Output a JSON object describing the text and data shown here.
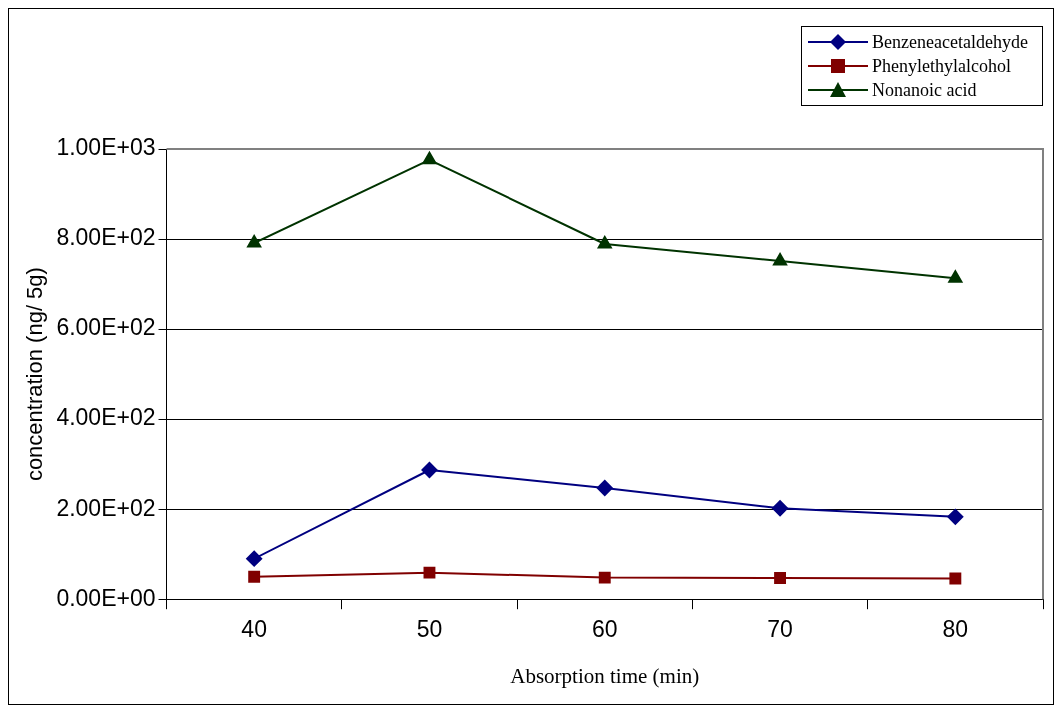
{
  "chart_data": {
    "type": "line",
    "xlabel": "Absorption time (min)",
    "ylabel": "concentration (ng/ 5g)",
    "categories": [
      "40",
      "50",
      "60",
      "70",
      "80"
    ],
    "series": [
      {
        "name": "Benzeneacetaldehyde",
        "color": "#000080",
        "marker": "diamond",
        "values": [
          90,
          287,
          247,
          202,
          183
        ]
      },
      {
        "name": "Phenylethylalcohol",
        "color": "#800000",
        "marker": "square",
        "values": [
          50,
          59,
          48,
          47,
          46
        ]
      },
      {
        "name": "Nonanoic acid",
        "color": "#003300",
        "marker": "triangle",
        "values": [
          791,
          976,
          789,
          751,
          713
        ]
      }
    ],
    "ylim": [
      0,
      1000
    ],
    "yticks": [
      {
        "value": 0,
        "label": "0.00E+00"
      },
      {
        "value": 200,
        "label": "2.00E+02"
      },
      {
        "value": 400,
        "label": "4.00E+02"
      },
      {
        "value": 600,
        "label": "6.00E+02"
      },
      {
        "value": 800,
        "label": "8.00E+02"
      },
      {
        "value": 1000,
        "label": "1.00E+03"
      }
    ],
    "grid": "y",
    "legend": "top right"
  }
}
